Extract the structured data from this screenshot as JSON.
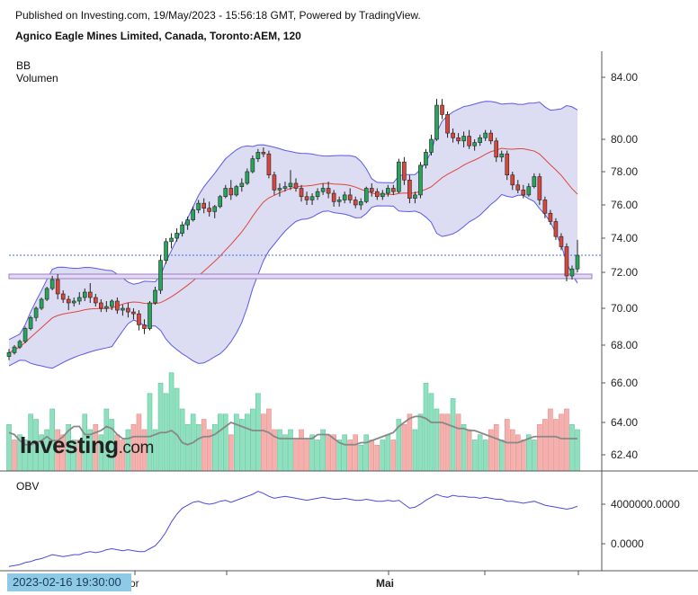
{
  "header": {
    "published": "Published on Investing.com, 19/May/2023 - 15:56:18 GMT, Powered by TradingView.",
    "instrument": "Agnico Eagle Mines Limited, Canada, Toronto:AEM, 120"
  },
  "indicators": {
    "bb": "BB",
    "volume": "Volumen",
    "obv": "OBV"
  },
  "watermark": {
    "main": "Investing",
    "suffix": ".com"
  },
  "cursor_date": "2023-02-16 19:30:00",
  "x_labels": [
    "or",
    "Mai"
  ],
  "colors": {
    "up": "#26a65b",
    "down": "#d9463c",
    "band_fill": "#dcdcf3",
    "band_line": "#5a5ae6",
    "basis": "#e0453a",
    "obv_line": "#4a4ae0",
    "support": "#9b7fc6",
    "price_line": "#3f6fe0",
    "vol_up": "#8fe0bf",
    "vol_down": "#f5b0ae",
    "vol_ma": "#888888"
  },
  "chart_data": {
    "type": "candlestick",
    "title": "Agnico Eagle Mines Limited, Canada, Toronto:AEM, 120",
    "price_axis": {
      "ticks": [
        84.0,
        80.0,
        78.0,
        76.0,
        74.0,
        72.0,
        70.0,
        68.0,
        66.0,
        64.0,
        62.4
      ],
      "tick_labels": [
        "84.00",
        "80.00",
        "78.00",
        "76.00",
        "74.00",
        "72.00",
        "70.00",
        "68.00",
        "66.00",
        "64.00",
        "62.40"
      ]
    },
    "obv_axis": {
      "ticks": [
        4000000,
        0
      ],
      "tick_labels": [
        "4000000.0000",
        "0.0000"
      ]
    },
    "last_price": 73.0,
    "support_level": 71.75,
    "candles": [
      [
        67.4,
        67.8,
        67.2,
        67.6
      ],
      [
        67.6,
        68.0,
        67.5,
        67.9
      ],
      [
        67.9,
        68.3,
        67.8,
        68.2
      ],
      [
        68.2,
        69.0,
        68.1,
        68.9
      ],
      [
        68.9,
        69.6,
        68.8,
        69.5
      ],
      [
        69.5,
        70.1,
        69.3,
        70.0
      ],
      [
        70.0,
        70.6,
        69.9,
        70.5
      ],
      [
        70.5,
        71.2,
        70.4,
        71.1
      ],
      [
        71.1,
        71.8,
        71.0,
        71.6
      ],
      [
        71.6,
        71.9,
        70.5,
        70.8
      ],
      [
        70.8,
        71.0,
        70.3,
        70.5
      ],
      [
        70.5,
        70.7,
        69.9,
        70.3
      ],
      [
        70.3,
        70.6,
        70.1,
        70.4
      ],
      [
        70.4,
        70.9,
        70.2,
        70.6
      ],
      [
        70.6,
        71.1,
        70.4,
        70.9
      ],
      [
        70.9,
        71.4,
        70.3,
        70.6
      ],
      [
        70.6,
        70.8,
        70.1,
        70.3
      ],
      [
        70.3,
        70.5,
        69.8,
        70.0
      ],
      [
        70.0,
        70.4,
        69.8,
        70.1
      ],
      [
        70.1,
        70.5,
        69.9,
        70.4
      ],
      [
        70.4,
        70.6,
        69.7,
        69.9
      ],
      [
        69.9,
        70.2,
        69.6,
        70.0
      ],
      [
        70.0,
        70.3,
        69.5,
        69.8
      ],
      [
        69.8,
        70.0,
        69.4,
        69.7
      ],
      [
        69.7,
        69.9,
        68.8,
        69.1
      ],
      [
        69.1,
        69.4,
        68.6,
        68.9
      ],
      [
        68.9,
        70.4,
        68.8,
        70.3
      ],
      [
        70.3,
        71.2,
        70.2,
        71.0
      ],
      [
        71.0,
        73.0,
        70.8,
        72.7
      ],
      [
        72.7,
        74.0,
        72.5,
        73.8
      ],
      [
        73.8,
        74.3,
        73.4,
        74.0
      ],
      [
        74.0,
        74.6,
        73.8,
        74.3
      ],
      [
        74.3,
        75.0,
        74.1,
        74.8
      ],
      [
        74.8,
        75.3,
        74.5,
        75.1
      ],
      [
        75.1,
        75.9,
        75.0,
        75.7
      ],
      [
        75.7,
        76.3,
        75.5,
        76.1
      ],
      [
        76.1,
        76.4,
        75.5,
        75.8
      ],
      [
        75.8,
        76.2,
        75.3,
        75.6
      ],
      [
        75.6,
        76.0,
        75.2,
        75.9
      ],
      [
        75.9,
        76.6,
        75.8,
        76.5
      ],
      [
        76.5,
        77.2,
        76.4,
        77.0
      ],
      [
        77.0,
        77.5,
        76.3,
        76.6
      ],
      [
        76.6,
        77.2,
        76.5,
        77.1
      ],
      [
        77.1,
        77.6,
        76.8,
        77.3
      ],
      [
        77.3,
        78.2,
        77.2,
        78.0
      ],
      [
        78.0,
        79.0,
        77.9,
        78.8
      ],
      [
        78.8,
        79.4,
        78.6,
        79.2
      ],
      [
        79.2,
        79.5,
        78.9,
        79.1
      ],
      [
        79.1,
        79.3,
        77.6,
        77.8
      ],
      [
        77.8,
        78.0,
        76.6,
        76.9
      ],
      [
        76.9,
        77.3,
        76.5,
        77.0
      ],
      [
        77.0,
        77.4,
        76.8,
        77.1
      ],
      [
        77.1,
        78.1,
        76.9,
        77.3
      ],
      [
        77.3,
        77.6,
        76.8,
        77.0
      ],
      [
        77.0,
        77.2,
        76.2,
        76.5
      ],
      [
        76.5,
        76.8,
        76.0,
        76.3
      ],
      [
        76.3,
        76.7,
        76.0,
        76.5
      ],
      [
        76.5,
        77.0,
        76.3,
        76.8
      ],
      [
        76.8,
        77.3,
        76.6,
        77.0
      ],
      [
        77.0,
        77.4,
        76.4,
        76.7
      ],
      [
        76.7,
        76.9,
        75.9,
        76.2
      ],
      [
        76.2,
        76.5,
        75.9,
        76.3
      ],
      [
        76.3,
        76.8,
        76.1,
        76.6
      ],
      [
        76.6,
        77.0,
        76.1,
        76.3
      ],
      [
        76.3,
        76.5,
        75.8,
        76.0
      ],
      [
        76.0,
        76.4,
        75.7,
        76.2
      ],
      [
        76.2,
        77.1,
        76.1,
        77.0
      ],
      [
        77.0,
        77.3,
        76.5,
        76.8
      ],
      [
        76.8,
        77.0,
        76.3,
        76.5
      ],
      [
        76.5,
        76.9,
        76.3,
        76.7
      ],
      [
        76.7,
        77.2,
        76.5,
        77.0
      ],
      [
        77.0,
        77.2,
        76.6,
        76.8
      ],
      [
        76.8,
        78.8,
        76.7,
        78.6
      ],
      [
        78.6,
        78.9,
        77.2,
        77.5
      ],
      [
        77.5,
        77.8,
        76.1,
        76.4
      ],
      [
        76.4,
        76.8,
        76.1,
        76.6
      ],
      [
        76.6,
        78.6,
        76.4,
        78.4
      ],
      [
        78.4,
        79.4,
        78.2,
        79.2
      ],
      [
        79.2,
        80.3,
        79.0,
        80.0
      ],
      [
        80.0,
        82.6,
        79.9,
        82.2
      ],
      [
        82.2,
        82.6,
        81.3,
        81.6
      ],
      [
        81.6,
        81.8,
        80.1,
        80.4
      ],
      [
        80.4,
        80.7,
        79.8,
        80.1
      ],
      [
        80.1,
        80.4,
        79.7,
        79.9
      ],
      [
        79.9,
        80.5,
        79.5,
        80.2
      ],
      [
        80.2,
        80.6,
        79.4,
        79.6
      ],
      [
        79.6,
        80.0,
        79.3,
        79.8
      ],
      [
        79.8,
        80.3,
        79.6,
        80.1
      ],
      [
        80.1,
        80.6,
        79.9,
        80.4
      ],
      [
        80.4,
        80.6,
        79.7,
        79.9
      ],
      [
        79.9,
        80.1,
        78.6,
        78.9
      ],
      [
        78.9,
        79.3,
        78.6,
        79.1
      ],
      [
        79.1,
        79.3,
        77.5,
        77.8
      ],
      [
        77.8,
        78.0,
        76.9,
        77.2
      ],
      [
        77.2,
        77.5,
        76.7,
        76.9
      ],
      [
        76.9,
        77.2,
        76.4,
        76.6
      ],
      [
        76.6,
        77.3,
        76.5,
        77.1
      ],
      [
        77.1,
        77.9,
        77.0,
        77.7
      ],
      [
        77.7,
        77.9,
        76.0,
        76.3
      ],
      [
        76.3,
        76.5,
        75.2,
        75.5
      ],
      [
        75.5,
        75.7,
        74.8,
        75.0
      ],
      [
        75.0,
        75.2,
        73.9,
        74.1
      ],
      [
        74.1,
        74.3,
        73.3,
        73.5
      ],
      [
        73.5,
        73.7,
        71.5,
        71.8
      ],
      [
        71.8,
        72.4,
        71.6,
        72.2
      ],
      [
        72.2,
        73.9,
        72.0,
        73.0
      ]
    ],
    "volume_ma": [
      63.5,
      63.4,
      63.1,
      62.9,
      62.9,
      63.0,
      63.1,
      63.3,
      63.1,
      63.1,
      63.3,
      63.6,
      63.8,
      63.8,
      63.4,
      63.4,
      63.5,
      63.6,
      63.8,
      63.7,
      63.4,
      63.2,
      63.2,
      63.3,
      63.3,
      63.3,
      63.3,
      63.4,
      63.5,
      63.5,
      63.6,
      63.4,
      63.0,
      62.9,
      63.0,
      63.2,
      63.3,
      63.3,
      63.4,
      63.6,
      63.8,
      64.0,
      63.9,
      63.8,
      63.7,
      63.6,
      63.6,
      63.6,
      63.5,
      63.3,
      63.2,
      63.2,
      63.2,
      63.2,
      63.2,
      63.2,
      63.2,
      63.4,
      63.4,
      63.4,
      63.2,
      63.0,
      62.9,
      62.9,
      62.9,
      63.0,
      63.0,
      63.1,
      63.2,
      63.3,
      63.4,
      63.5,
      63.8,
      64.0,
      64.2,
      64.3,
      64.3,
      64.2,
      64.0,
      64.0,
      64.0,
      63.9,
      63.8,
      63.7,
      63.7,
      63.6,
      63.6,
      63.5,
      63.4,
      63.3,
      63.2,
      63.1,
      63.0,
      63.0,
      63.0,
      63.1,
      63.2,
      63.3,
      63.3,
      63.3,
      63.3,
      63.3,
      63.2,
      63.2,
      63.2,
      63.2
    ],
    "volume": [
      [
        0,
        0.45
      ],
      [
        1,
        0.3
      ],
      [
        0,
        0.35
      ],
      [
        0,
        0.3
      ],
      [
        0,
        0.55
      ],
      [
        0,
        0.5
      ],
      [
        0,
        0.35
      ],
      [
        0,
        0.4
      ],
      [
        0,
        0.6
      ],
      [
        1,
        0.4
      ],
      [
        1,
        0.35
      ],
      [
        0,
        0.45
      ],
      [
        0,
        0.3
      ],
      [
        1,
        0.3
      ],
      [
        0,
        0.55
      ],
      [
        0,
        0.4
      ],
      [
        1,
        0.45
      ],
      [
        0,
        0.35
      ],
      [
        0,
        0.6
      ],
      [
        0,
        0.5
      ],
      [
        1,
        0.35
      ],
      [
        1,
        0.3
      ],
      [
        0,
        0.4
      ],
      [
        1,
        0.45
      ],
      [
        1,
        0.55
      ],
      [
        1,
        0.4
      ],
      [
        0,
        0.75
      ],
      [
        0,
        0.4
      ],
      [
        0,
        0.85
      ],
      [
        0,
        0.75
      ],
      [
        0,
        0.95
      ],
      [
        0,
        0.8
      ],
      [
        0,
        0.6
      ],
      [
        0,
        0.45
      ],
      [
        0,
        0.55
      ],
      [
        0,
        0.45
      ],
      [
        1,
        0.5
      ],
      [
        1,
        0.4
      ],
      [
        0,
        0.45
      ],
      [
        0,
        0.55
      ],
      [
        0,
        0.55
      ],
      [
        1,
        0.35
      ],
      [
        0,
        0.55
      ],
      [
        0,
        0.5
      ],
      [
        0,
        0.55
      ],
      [
        0,
        0.6
      ],
      [
        0,
        0.75
      ],
      [
        1,
        0.55
      ],
      [
        1,
        0.6
      ],
      [
        1,
        0.4
      ],
      [
        0,
        0.4
      ],
      [
        0,
        0.35
      ],
      [
        0,
        0.4
      ],
      [
        1,
        0.3
      ],
      [
        1,
        0.4
      ],
      [
        1,
        0.3
      ],
      [
        0,
        0.35
      ],
      [
        0,
        0.3
      ],
      [
        0,
        0.4
      ],
      [
        1,
        0.35
      ],
      [
        1,
        0.35
      ],
      [
        0,
        0.3
      ],
      [
        0,
        0.35
      ],
      [
        1,
        0.3
      ],
      [
        1,
        0.35
      ],
      [
        0,
        0.25
      ],
      [
        0,
        0.35
      ],
      [
        1,
        0.3
      ],
      [
        1,
        0.25
      ],
      [
        0,
        0.3
      ],
      [
        0,
        0.35
      ],
      [
        1,
        0.3
      ],
      [
        0,
        0.5
      ],
      [
        1,
        0.45
      ],
      [
        1,
        0.55
      ],
      [
        0,
        0.4
      ],
      [
        0,
        0.55
      ],
      [
        0,
        0.85
      ],
      [
        0,
        0.75
      ],
      [
        0,
        0.6
      ],
      [
        1,
        0.55
      ],
      [
        1,
        0.55
      ],
      [
        0,
        0.7
      ],
      [
        1,
        0.55
      ],
      [
        0,
        0.45
      ],
      [
        1,
        0.4
      ],
      [
        0,
        0.3
      ],
      [
        0,
        0.35
      ],
      [
        0,
        0.3
      ],
      [
        1,
        0.4
      ],
      [
        1,
        0.45
      ],
      [
        0,
        0.3
      ],
      [
        1,
        0.5
      ],
      [
        1,
        0.4
      ],
      [
        1,
        0.35
      ],
      [
        1,
        0.3
      ],
      [
        0,
        0.35
      ],
      [
        0,
        0.3
      ],
      [
        1,
        0.45
      ],
      [
        1,
        0.5
      ],
      [
        1,
        0.6
      ],
      [
        1,
        0.5
      ],
      [
        1,
        0.55
      ],
      [
        1,
        0.6
      ],
      [
        0,
        0.45
      ],
      [
        0,
        0.4
      ]
    ],
    "obv": [
      -2.3,
      -2.2,
      -2.1,
      -1.9,
      -1.8,
      -1.6,
      -1.5,
      -1.3,
      -1.1,
      -1.2,
      -1.3,
      -1.2,
      -1.1,
      -1.1,
      -0.9,
      -0.8,
      -0.9,
      -0.8,
      -0.6,
      -0.5,
      -0.6,
      -0.7,
      -0.6,
      -0.7,
      -0.8,
      -0.8,
      -0.5,
      -0.2,
      0.4,
      1.2,
      2.2,
      3.0,
      3.6,
      3.9,
      4.2,
      4.3,
      4.1,
      4.0,
      4.1,
      4.3,
      4.4,
      4.2,
      4.4,
      4.6,
      4.8,
      5.0,
      5.3,
      5.1,
      4.8,
      4.6,
      4.7,
      4.8,
      4.7,
      4.6,
      4.5,
      4.4,
      4.5,
      4.6,
      4.7,
      4.6,
      4.5,
      4.5,
      4.6,
      4.5,
      4.4,
      4.4,
      4.5,
      4.4,
      4.3,
      4.3,
      4.4,
      4.3,
      4.4,
      4.0,
      3.6,
      3.7,
      4.0,
      4.4,
      4.7,
      5.0,
      4.8,
      4.7,
      4.9,
      4.8,
      4.8,
      4.7,
      4.7,
      4.6,
      4.7,
      4.6,
      4.5,
      4.5,
      4.3,
      4.3,
      4.2,
      4.1,
      4.2,
      4.3,
      4.1,
      3.9,
      3.8,
      3.7,
      3.6,
      3.5,
      3.6,
      3.8
    ]
  }
}
